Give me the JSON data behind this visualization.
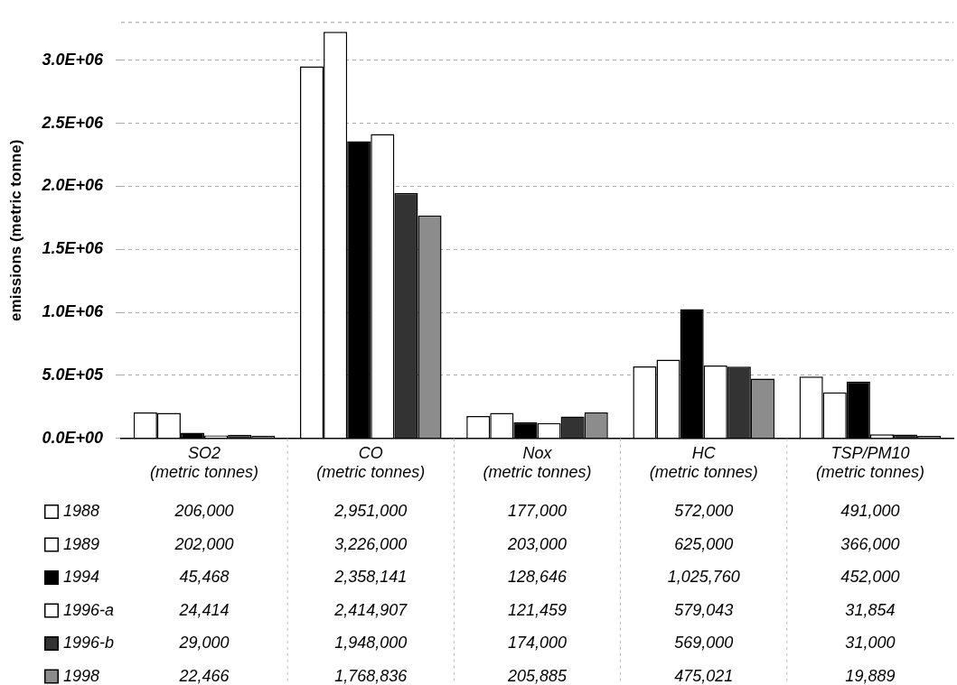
{
  "chart_data": {
    "type": "bar",
    "ylabel": "emissions (metric tonne)",
    "categories": [
      "SO2 (metric tonnes)",
      "CO (metric tonnes)",
      "Nox (metric tonnes)",
      "HC (metric tonnes)",
      "TSP/PM10 (metric tonnes)"
    ],
    "series": [
      {
        "name": "1988",
        "color": "#ffffff",
        "values": [
          206000,
          2951000,
          177000,
          572000,
          491000
        ],
        "value_labels": [
          "206,000",
          "2,951,000",
          "177,000",
          "572,000",
          "491,000"
        ]
      },
      {
        "name": "1989",
        "color": "#ffffff",
        "values": [
          202000,
          3226000,
          203000,
          625000,
          366000
        ],
        "value_labels": [
          "202,000",
          "3,226,000",
          "203,000",
          "625,000",
          "366,000"
        ]
      },
      {
        "name": "1994",
        "color": "#000000",
        "values": [
          45468,
          2358141,
          128646,
          1025760,
          452000
        ],
        "value_labels": [
          "45,468",
          "2,358,141",
          "128,646",
          "1,025,760",
          "452,000"
        ]
      },
      {
        "name": "1996-a",
        "color": "#ffffff",
        "values": [
          24414,
          2414907,
          121459,
          579043,
          31854
        ],
        "value_labels": [
          "24,414",
          "2,414,907",
          "121,459",
          "579,043",
          "31,854"
        ]
      },
      {
        "name": "1996-b",
        "color": "#333333",
        "values": [
          29000,
          1948000,
          174000,
          569000,
          31000
        ],
        "value_labels": [
          "29,000",
          "1,948,000",
          "174,000",
          "569,000",
          "31,000"
        ]
      },
      {
        "name": "1998",
        "color": "#8c8c8c",
        "values": [
          22466,
          1768836,
          205885,
          475021,
          19889
        ],
        "value_labels": [
          "22,466",
          "1,768,836",
          "205,885",
          "475,021",
          "19,889"
        ]
      }
    ],
    "ylim": [
      0,
      3300000
    ],
    "yticks": [
      {
        "value": 0,
        "label": "0.0E+00"
      },
      {
        "value": 500000,
        "label": "5.0E+05"
      },
      {
        "value": 1000000,
        "label": "1.0E+06"
      },
      {
        "value": 1500000,
        "label": "1.5E+06"
      },
      {
        "value": 2000000,
        "label": "2.0E+06"
      },
      {
        "value": 2500000,
        "label": "2.5E+06"
      },
      {
        "value": 3000000,
        "label": "3.0E+06"
      }
    ],
    "grid": "y",
    "legend": "bottom"
  }
}
